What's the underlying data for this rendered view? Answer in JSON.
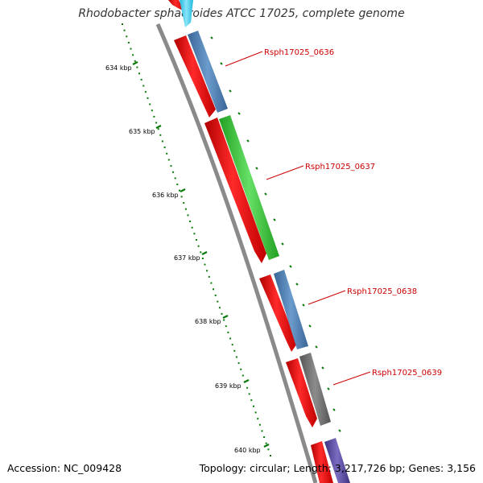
{
  "title": "Rhodobacter sphaeroides ATCC 17025, complete genome",
  "footer": {
    "accession": "Accession: NC_009428",
    "summary": "Topology: circular; Length: 3,217,726 bp; Genes: 3,156"
  },
  "scale_labels": [
    "634 kbp",
    "635 kbp",
    "636 kbp",
    "637 kbp",
    "638 kbp",
    "639 kbp",
    "640 kbp"
  ],
  "gene_labels": [
    "Rsph17025_0636",
    "Rsph17025_0637",
    "Rsph17025_0638",
    "Rsph17025_0639"
  ],
  "colors": {
    "backbone": "#8a8a8a",
    "cds": "#ee1111",
    "tick": "#0a7a0a",
    "label": "#cc0000",
    "gene_0635": "#33ccee",
    "gene_0636": "#4f7fb3",
    "gene_0637": "#33cc33",
    "gene_0638": "#4f7fb3",
    "gene_0639": "#6e6e6e",
    "gene_0640": "#5a4a9a"
  }
}
